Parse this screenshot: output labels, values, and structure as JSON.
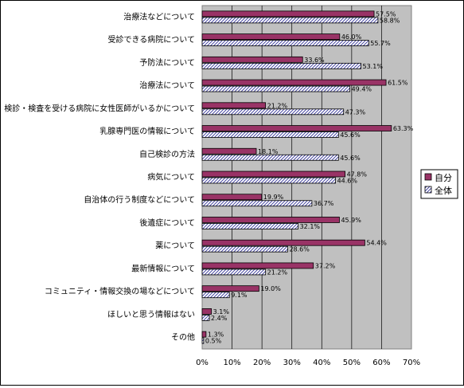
{
  "chart_data": {
    "type": "bar",
    "orientation": "horizontal",
    "categories": [
      "治療法などについて",
      "受診できる病院について",
      "予防法について",
      "治療法について",
      "検診・検査を受ける病院に女性医師がいるかについて",
      "乳腺専門医の情報について",
      "自己検診の方法",
      "病気について",
      "自治体の行う制度などについて",
      "後遺症について",
      "薬について",
      "最新情報について",
      "コミュニティ・情報交換の場などについて",
      "ほしいと思う情報はない",
      "その他"
    ],
    "series": [
      {
        "name": "自分",
        "color": "#993366",
        "values": [
          57.5,
          46.0,
          33.6,
          61.5,
          21.2,
          63.3,
          18.1,
          47.8,
          19.9,
          45.9,
          54.4,
          37.2,
          19.0,
          3.1,
          1.3
        ],
        "labels": [
          "57.5%",
          "46.0%",
          "33.6%",
          "61.5%",
          "21.2%",
          "63.3%",
          "18.1%",
          "47.8%",
          "19.9%",
          "45.9%",
          "54.4%",
          "37.2%",
          "19.0%",
          "3.1%",
          "1.3%"
        ]
      },
      {
        "name": "全体",
        "color": "#ffffff",
        "pattern": "diagonal-hatch",
        "pattern_color": "#333399",
        "values": [
          58.8,
          55.7,
          53.1,
          49.4,
          47.3,
          45.6,
          45.6,
          44.6,
          36.7,
          32.1,
          28.6,
          21.2,
          9.1,
          2.4,
          0.5
        ],
        "labels": [
          "58.8%",
          "55.7%",
          "53.1%",
          "49.4%",
          "47.3%",
          "45.6%",
          "45.6%",
          "44.6%",
          "36.7%",
          "32.1%",
          "28.6%",
          "21.2%",
          "9.1%",
          "2.4%",
          "0.5%"
        ]
      }
    ],
    "xlim": [
      0,
      70
    ],
    "xticks": [
      0,
      10,
      20,
      30,
      40,
      50,
      60,
      70
    ],
    "xtick_labels": [
      "0%",
      "10%",
      "20%",
      "30%",
      "40%",
      "50%",
      "60%",
      "70%"
    ],
    "plot_background": "#c0c0c0",
    "grid": "vertical",
    "legend": "right"
  }
}
